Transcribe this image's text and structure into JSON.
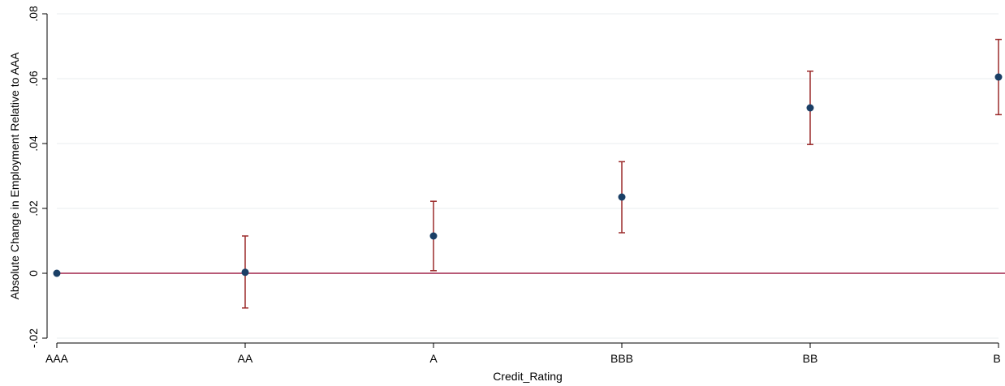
{
  "chart_data": {
    "type": "scatter",
    "title": "",
    "xlabel": "Credit_Rating",
    "ylabel": "Absolute Change in Employment Relative to AAA",
    "categories": [
      "AAA",
      "AA",
      "A",
      "BBB",
      "BB",
      "B"
    ],
    "y_ticks": [
      -0.02,
      0,
      0.02,
      0.04,
      0.06,
      0.08
    ],
    "y_tick_labels": [
      "-.02",
      "0",
      ".02",
      ".04",
      ".06",
      ".08"
    ],
    "ylim": [
      -0.02,
      0.08
    ],
    "grid": true,
    "reference_line": 0,
    "series": [
      {
        "values": [
          0.0,
          0.0003,
          0.0115,
          0.0235,
          0.051,
          0.0605
        ],
        "ci_low": [
          null,
          -0.0107,
          0.0008,
          0.0125,
          0.0397,
          0.0489
        ],
        "ci_high": [
          null,
          0.0115,
          0.0222,
          0.0344,
          0.0623,
          0.0721
        ]
      }
    ],
    "colors": {
      "marker": "#1a3f66",
      "error_bar": "#9b2a2a",
      "reference_line": "#a0234a",
      "grid": "#e8ecef",
      "axis": "#000000"
    }
  }
}
